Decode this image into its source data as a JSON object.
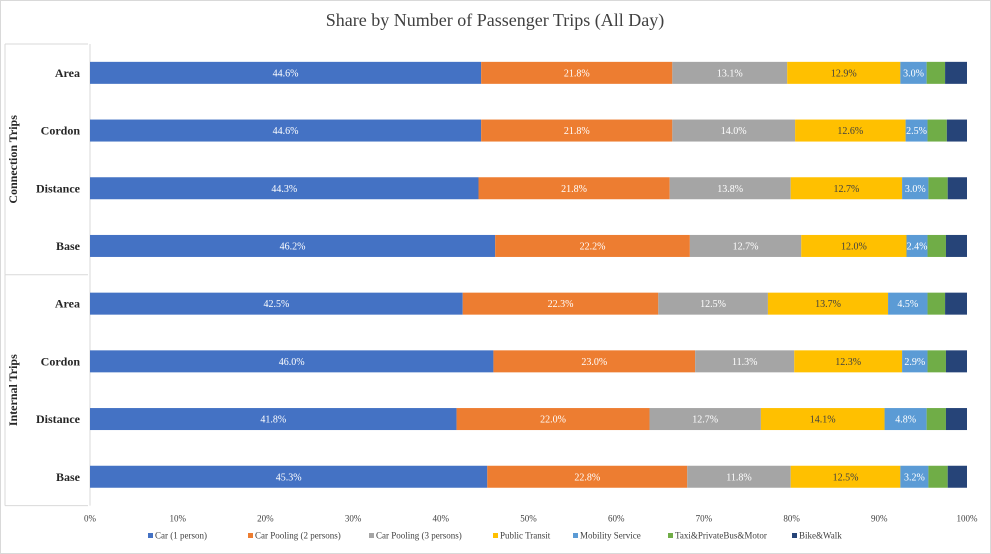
{
  "chart_data": {
    "type": "bar",
    "orientation": "horizontal",
    "stacked": "percent",
    "title": "Share by Number of Passenger Trips (All Day)",
    "groups": [
      {
        "name": "Connection Trips",
        "categories": [
          "Area",
          "Cordon",
          "Distance",
          "Base"
        ]
      },
      {
        "name": "Internal Trips",
        "categories": [
          "Area",
          "Cordon",
          "Distance",
          "Base"
        ]
      }
    ],
    "rows": [
      {
        "group": "Connection Trips",
        "category": "Area"
      },
      {
        "group": "Connection Trips",
        "category": "Cordon"
      },
      {
        "group": "Connection Trips",
        "category": "Distance"
      },
      {
        "group": "Connection Trips",
        "category": "Base"
      },
      {
        "group": "Internal Trips",
        "category": "Area"
      },
      {
        "group": "Internal Trips",
        "category": "Cordon"
      },
      {
        "group": "Internal Trips",
        "category": "Distance"
      },
      {
        "group": "Internal Trips",
        "category": "Base"
      }
    ],
    "series": [
      {
        "name": "Car (1 person)",
        "color": "#4472c4",
        "values": [
          44.6,
          44.6,
          44.3,
          46.2,
          42.5,
          46.0,
          41.8,
          45.3
        ],
        "labels": [
          "44.6%",
          "44.6%",
          "44.3%",
          "46.2%",
          "42.5%",
          "46.0%",
          "41.8%",
          "45.3%"
        ]
      },
      {
        "name": "Car Pooling (2 persons)",
        "color": "#ed7d31",
        "values": [
          21.8,
          21.8,
          21.8,
          22.2,
          22.3,
          23.0,
          22.0,
          22.8
        ],
        "labels": [
          "21.8%",
          "21.8%",
          "21.8%",
          "22.2%",
          "22.3%",
          "23.0%",
          "22.0%",
          "22.8%"
        ]
      },
      {
        "name": "Car Pooling (3 persons)",
        "color": "#a5a5a5",
        "values": [
          13.1,
          14.0,
          13.8,
          12.7,
          12.5,
          11.3,
          12.7,
          11.8
        ],
        "labels": [
          "13.1%",
          "14.0%",
          "13.8%",
          "12.7%",
          "12.5%",
          "11.3%",
          "12.7%",
          "11.8%"
        ]
      },
      {
        "name": "Public Transit",
        "color": "#ffc000",
        "values": [
          12.9,
          12.6,
          12.7,
          12.0,
          13.7,
          12.3,
          14.1,
          12.5
        ],
        "labels": [
          "12.9%",
          "12.6%",
          "12.7%",
          "12.0%",
          "13.7%",
          "12.3%",
          "14.1%",
          "12.5%"
        ]
      },
      {
        "name": "Mobility Service",
        "color": "#5b9bd5",
        "values": [
          3.0,
          2.5,
          3.0,
          2.4,
          4.5,
          2.9,
          4.8,
          3.2
        ],
        "labels": [
          "3.0%",
          "2.5%",
          "3.0%",
          "2.4%",
          "4.5%",
          "2.9%",
          "4.8%",
          "3.2%"
        ]
      },
      {
        "name": "Taxi&PrivateBus&Motor",
        "color": "#70ad47",
        "values": [
          2.1,
          2.2,
          2.2,
          2.1,
          2.0,
          2.1,
          2.2,
          2.2
        ],
        "labels": []
      },
      {
        "name": "Bike&Walk",
        "color": "#264478",
        "values": [
          2.5,
          2.3,
          2.2,
          2.4,
          2.5,
          2.4,
          2.4,
          2.2
        ],
        "labels": []
      }
    ],
    "xaxis": {
      "min": 0,
      "max": 100,
      "ticks": [
        "0%",
        "10%",
        "20%",
        "30%",
        "40%",
        "50%",
        "60%",
        "70%",
        "80%",
        "90%",
        "100%"
      ]
    },
    "legend_position": "bottom",
    "grid": false
  }
}
